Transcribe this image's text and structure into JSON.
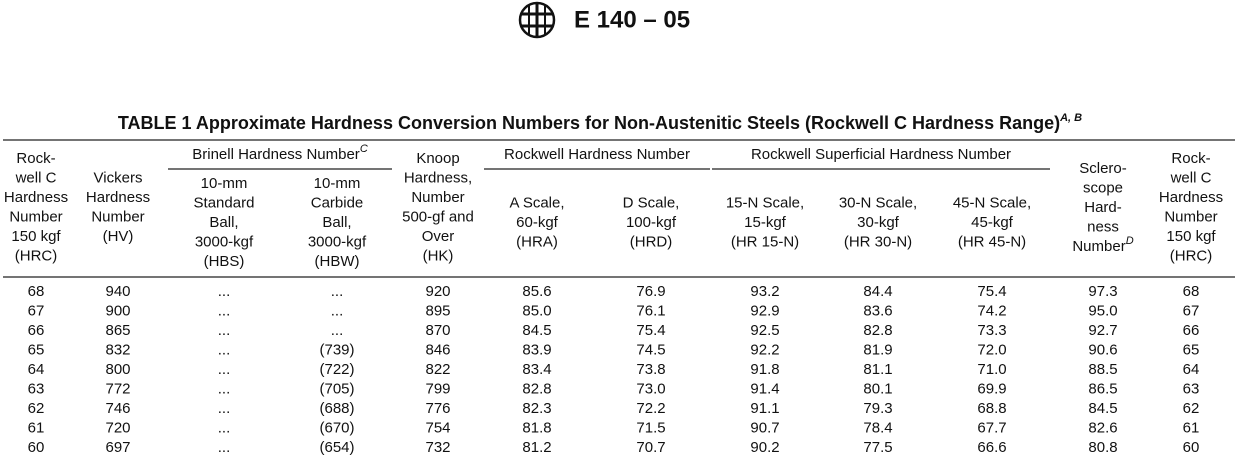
{
  "header": {
    "document_id": "E 140 – 05"
  },
  "table": {
    "title": "TABLE 1  Approximate Hardness Conversion Numbers for Non-Austenitic Steels (Rockwell C Hardness Range)",
    "title_note": "A, B",
    "groups": [
      {
        "label": "Brinell Hardness Number",
        "note": "C"
      },
      {
        "label": "Rockwell Hardness Number"
      },
      {
        "label": "Rockwell Superficial Hardness Number"
      }
    ],
    "columns": [
      {
        "lines": [
          "Rock-",
          "well C",
          "Hardness",
          "Number",
          "150 kgf",
          "(HRC)"
        ]
      },
      {
        "lines": [
          "Vickers",
          "Hardness",
          "Number",
          "(HV)"
        ]
      },
      {
        "lines": [
          "10-mm",
          "Standard",
          "Ball,",
          "3000-kgf",
          "(HBS)"
        ]
      },
      {
        "lines": [
          "10-mm",
          "Carbide",
          "Ball,",
          "3000-kgf",
          "(HBW)"
        ]
      },
      {
        "lines": [
          "Knoop",
          "Hardness,",
          "Number",
          "500-gf and",
          "Over",
          "(HK)"
        ]
      },
      {
        "lines": [
          "A Scale,",
          "60-kgf",
          "(HRA)"
        ]
      },
      {
        "lines": [
          "D Scale,",
          "100-kgf",
          "(HRD)"
        ]
      },
      {
        "lines": [
          "15-N Scale,",
          "15-kgf",
          "(HR 15-N)"
        ]
      },
      {
        "lines": [
          "30-N Scale,",
          "30-kgf",
          "(HR 30-N)"
        ]
      },
      {
        "lines": [
          "45-N Scale,",
          "45-kgf",
          "(HR 45-N)"
        ]
      },
      {
        "lines": [
          "Sclero-",
          "scope",
          "Hard-",
          "ness",
          "Number"
        ],
        "note": "D"
      },
      {
        "lines": [
          "Rock-",
          "well C",
          "Hardness",
          "Number",
          "150 kgf",
          "(HRC)"
        ]
      }
    ],
    "rows": [
      [
        "68",
        "940",
        "...",
        "...",
        "920",
        "85.6",
        "76.9",
        "93.2",
        "84.4",
        "75.4",
        "97.3",
        "68"
      ],
      [
        "67",
        "900",
        "...",
        "...",
        "895",
        "85.0",
        "76.1",
        "92.9",
        "83.6",
        "74.2",
        "95.0",
        "67"
      ],
      [
        "66",
        "865",
        "...",
        "...",
        "870",
        "84.5",
        "75.4",
        "92.5",
        "82.8",
        "73.3",
        "92.7",
        "66"
      ],
      [
        "65",
        "832",
        "...",
        "(739)",
        "846",
        "83.9",
        "74.5",
        "92.2",
        "81.9",
        "72.0",
        "90.6",
        "65"
      ],
      [
        "64",
        "800",
        "...",
        "(722)",
        "822",
        "83.4",
        "73.8",
        "91.8",
        "81.1",
        "71.0",
        "88.5",
        "64"
      ],
      [
        "63",
        "772",
        "...",
        "(705)",
        "799",
        "82.8",
        "73.0",
        "91.4",
        "80.1",
        "69.9",
        "86.5",
        "63"
      ],
      [
        "62",
        "746",
        "...",
        "(688)",
        "776",
        "82.3",
        "72.2",
        "91.1",
        "79.3",
        "68.8",
        "84.5",
        "62"
      ],
      [
        "61",
        "720",
        "...",
        "(670)",
        "754",
        "81.8",
        "71.5",
        "90.7",
        "78.4",
        "67.7",
        "82.6",
        "61"
      ],
      [
        "60",
        "697",
        "...",
        "(654)",
        "732",
        "81.2",
        "70.7",
        "90.2",
        "77.5",
        "66.6",
        "80.8",
        "60"
      ]
    ]
  }
}
